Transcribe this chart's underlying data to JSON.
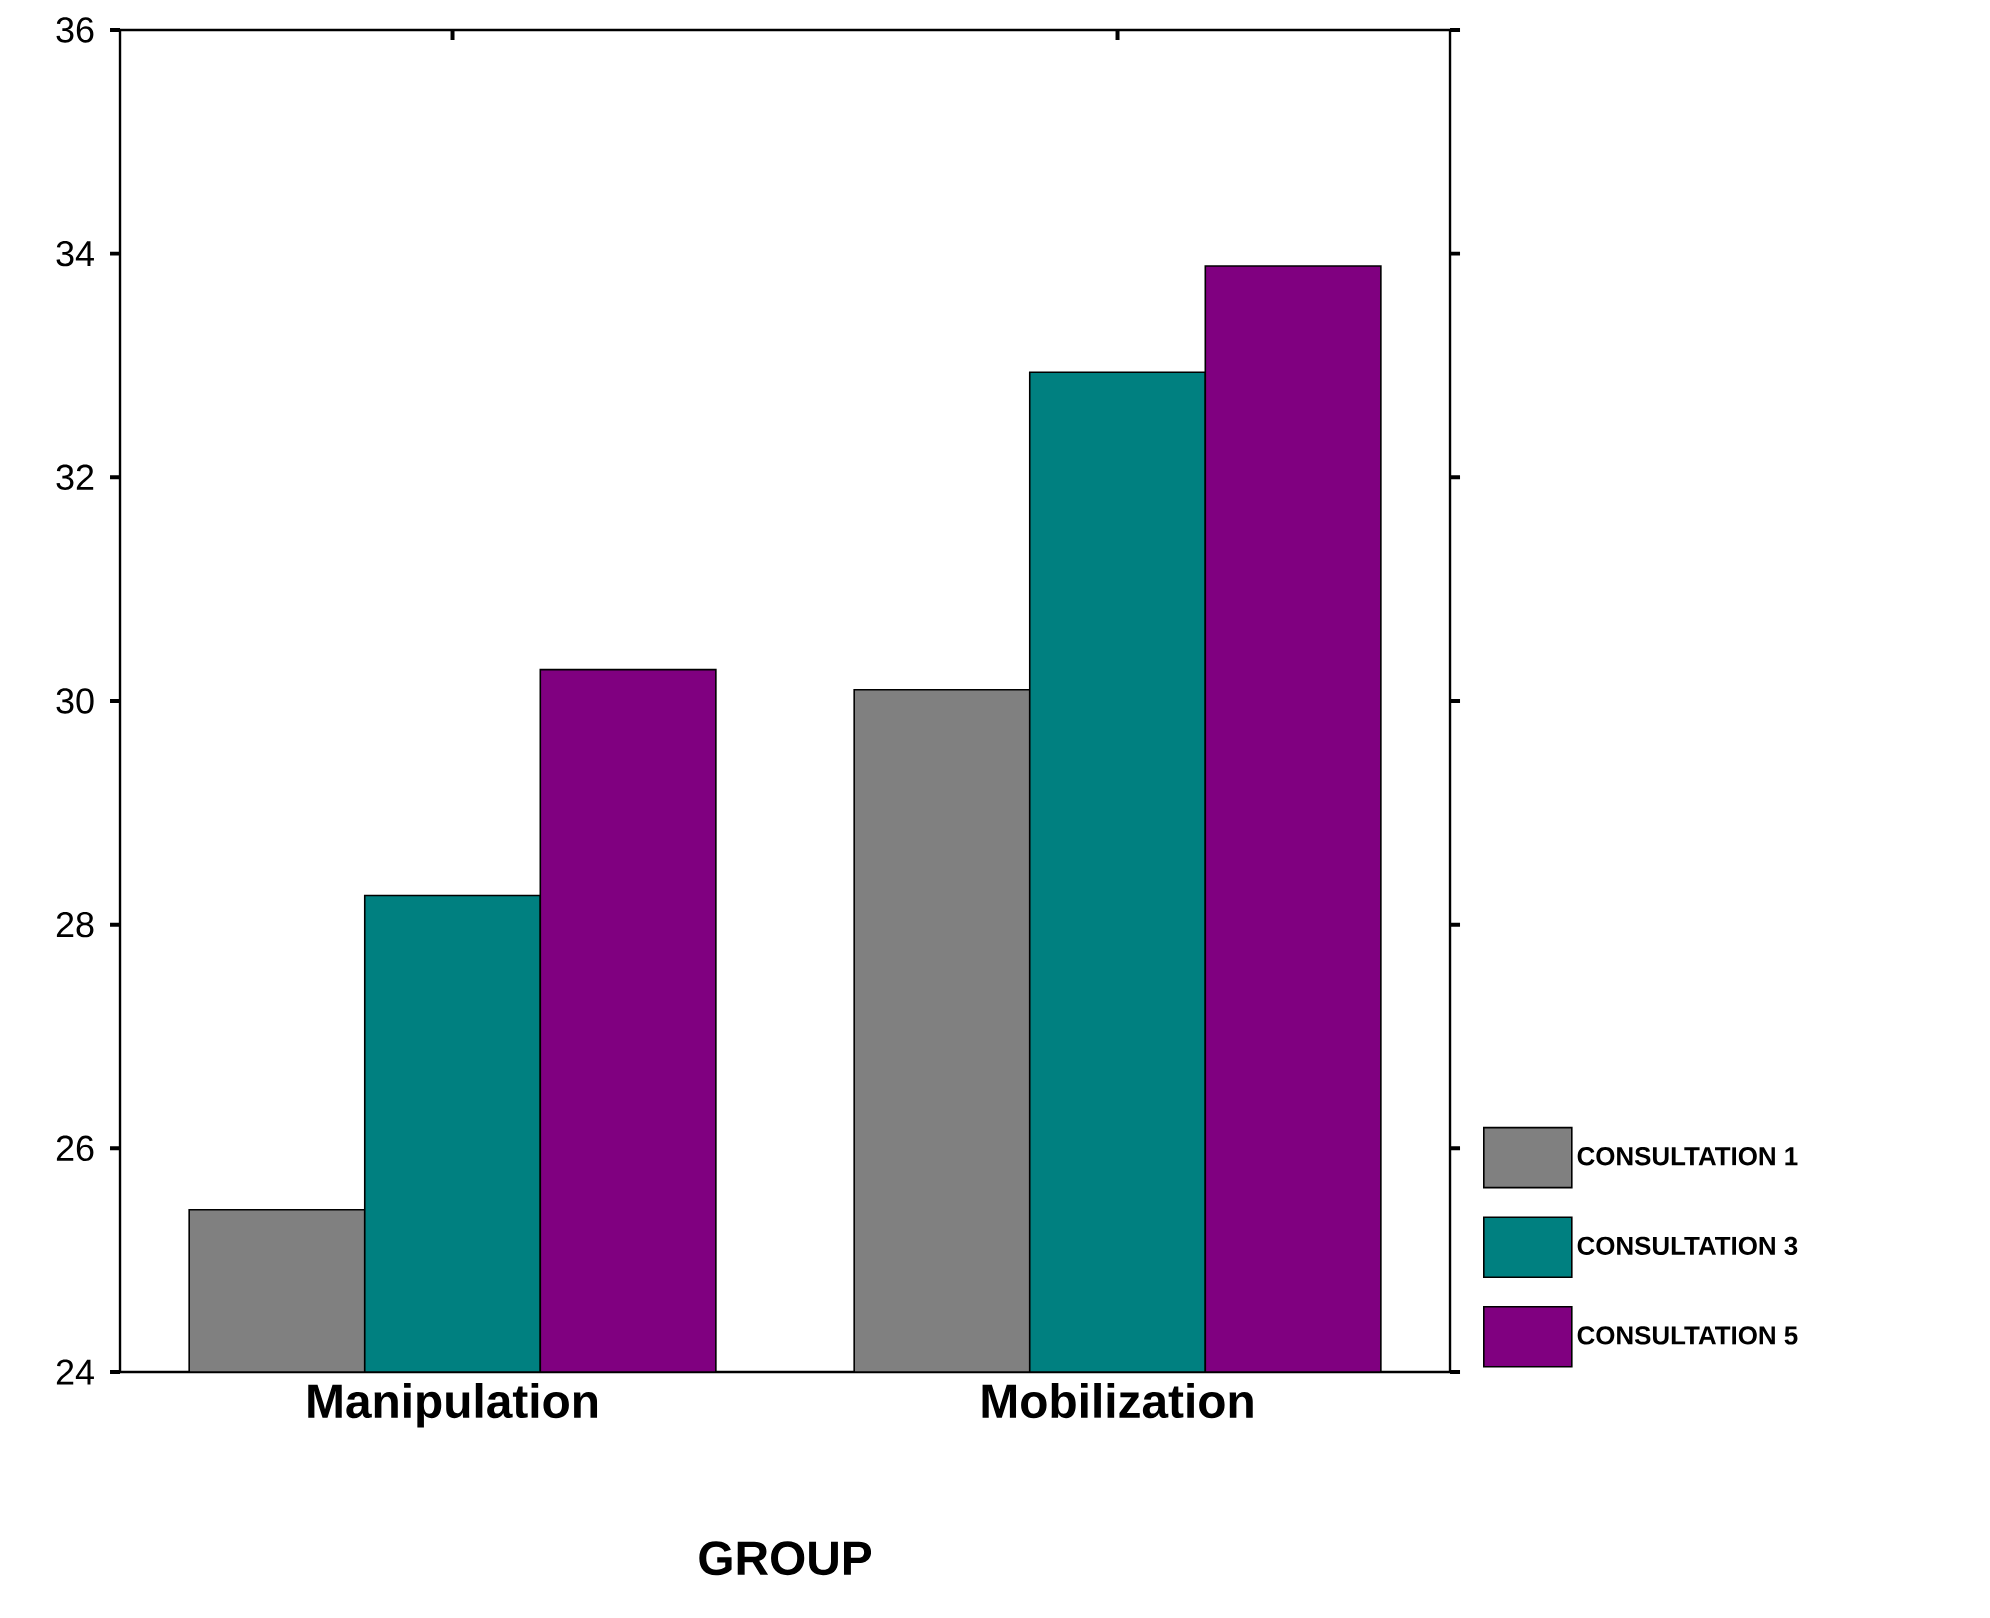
{
  "chart_data": {
    "type": "bar",
    "xlabel": "GROUP",
    "categories": [
      "Manipulation",
      "Mobilization"
    ],
    "series": [
      {
        "name": "CONSULTATION 1",
        "color": "#808080",
        "values": [
          25.45,
          30.1
        ]
      },
      {
        "name": "CONSULTATION 3",
        "color": "#008080",
        "values": [
          28.26,
          32.94
        ]
      },
      {
        "name": "CONSULTATION 5",
        "color": "#800080",
        "values": [
          30.28,
          33.89
        ]
      }
    ],
    "ylim": [
      24,
      36
    ],
    "yticks": [
      24,
      26,
      28,
      30,
      32,
      34,
      36
    ],
    "grid": false,
    "legend": "bottom right"
  }
}
